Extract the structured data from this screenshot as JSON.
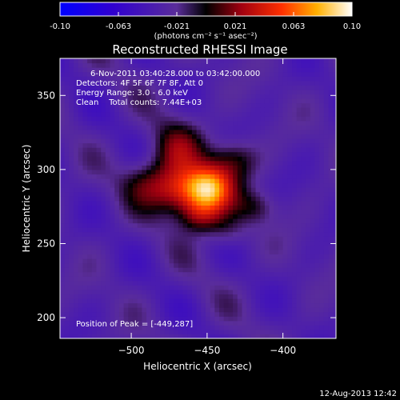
{
  "chart_data": {
    "type": "heatmap",
    "title": "Reconstructed RHESSI Image",
    "xlabel": "Heliocentric X (arcsec)",
    "ylabel": "Heliocentric Y (arcsec)",
    "xlim": [
      -547,
      -365
    ],
    "ylim": [
      186,
      375
    ],
    "x_ticks": [
      -500,
      -450,
      -400
    ],
    "y_ticks": [
      200,
      250,
      300,
      350
    ],
    "colorbar": {
      "min": -0.1,
      "max": 0.1,
      "tick_labels": [
        "-0.10",
        "-0.063",
        "-0.021",
        "0.021",
        "0.063",
        "0.10"
      ],
      "unit_label": "(photons cm⁻² s⁻¹ asec⁻²)"
    },
    "annotations": {
      "time": "6-Nov-2011 03:40:28.000 to 03:42:00.000",
      "detectors": "Detectors: 4F 5F 6F 7F 8F, Att 0",
      "energy": "Energy Range: 3.0 - 6.0 keV",
      "clean": "Clean    Total counts: 7.44E+03",
      "peak": "Position of Peak = [-449,287]"
    },
    "peak": {
      "x": -449,
      "y": 287,
      "value": 0.1
    },
    "sources": [
      {
        "x": -449,
        "y": 287,
        "amp": 0.095,
        "sx": 11,
        "sy": 11
      },
      {
        "x": -468,
        "y": 285,
        "amp": 0.06,
        "sx": 13,
        "sy": 11
      },
      {
        "x": -470,
        "y": 313,
        "amp": 0.04,
        "sx": 12,
        "sy": 14
      },
      {
        "x": -432,
        "y": 307,
        "amp": 0.035,
        "sx": 11,
        "sy": 10
      },
      {
        "x": -455,
        "y": 268,
        "amp": 0.04,
        "sx": 10,
        "sy": 8
      },
      {
        "x": -490,
        "y": 292,
        "amp": 0.03,
        "sx": 12,
        "sy": 11
      },
      {
        "x": -418,
        "y": 275,
        "amp": 0.025,
        "sx": 10,
        "sy": 8
      },
      {
        "x": -437,
        "y": 258,
        "amp": 0.02,
        "sx": 9,
        "sy": 8
      }
    ],
    "background_level": -0.03
  },
  "footer": {
    "date": "12-Aug-2013 12:42"
  }
}
